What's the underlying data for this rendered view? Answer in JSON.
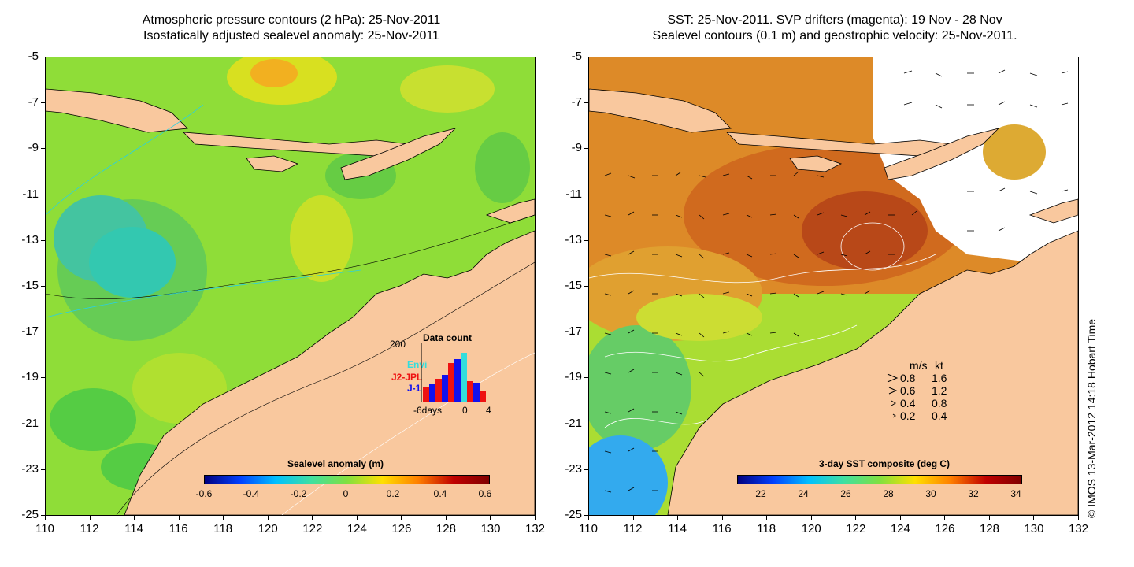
{
  "left_panel": {
    "title_line1": "Atmospheric pressure contours (2 hPa): 25-Nov-2011",
    "title_line2": "Isostatically adjusted sealevel anomaly: 25-Nov-2011",
    "colorbar_label": "Sealevel anomaly (m)",
    "colorbar_ticks": [
      "-0.6",
      "-0.4",
      "-0.2",
      "0",
      "0.2",
      "0.4",
      "0.6"
    ],
    "inset": {
      "title": "Data count",
      "y_max_label": "200",
      "x_labels": [
        "-6days",
        "0",
        "4"
      ],
      "legend": [
        {
          "name": "Envi",
          "color": "#33dddd"
        },
        {
          "name": "J2-JPL",
          "color": "#ee1111"
        },
        {
          "name": "J-1",
          "color": "#1111ee"
        }
      ]
    }
  },
  "right_panel": {
    "title_line1": "SST: 25-Nov-2011. SVP drifters (magenta): 19 Nov - 28 Nov",
    "title_line2": "Sealevel contours (0.1 m) and geostrophic velocity: 25-Nov-2011.",
    "colorbar_label": "3-day SST composite (deg C)",
    "colorbar_ticks": [
      "22",
      "24",
      "26",
      "28",
      "30",
      "32",
      "34"
    ],
    "velocity_legend": {
      "header_ms": "m/s",
      "header_kt": "kt",
      "rows": [
        {
          "ms": "0.8",
          "kt": "1.6"
        },
        {
          "ms": "0.6",
          "kt": "1.2"
        },
        {
          "ms": "0.4",
          "kt": "0.8"
        },
        {
          "ms": "0.2",
          "kt": "0.4"
        }
      ]
    }
  },
  "axes": {
    "x_ticks": [
      "110",
      "112",
      "114",
      "116",
      "118",
      "120",
      "122",
      "124",
      "126",
      "128",
      "130",
      "132"
    ],
    "y_ticks": [
      "-5",
      "-7",
      "-9",
      "-11",
      "-13",
      "-15",
      "-17",
      "-19",
      "-21",
      "-23",
      "-25"
    ],
    "lon_range": [
      110,
      132
    ],
    "lat_range": [
      -25,
      -5
    ]
  },
  "copyright": "© IMOS 13-Mar-2012 14:18 Hobart Time",
  "colors": {
    "land": "#f9c89e",
    "sea_mid": "#88dd33",
    "sea_low": "#33ccaa",
    "sea_high": "#ffbb22",
    "sst_warm": "#dd7722",
    "sst_hot": "#b84818",
    "sst_cool": "#33aaee"
  }
}
